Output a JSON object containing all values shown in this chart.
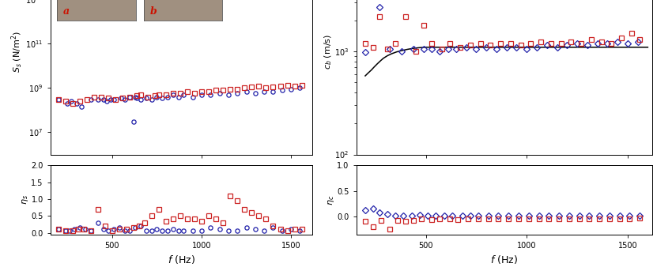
{
  "left_top": {
    "ylabel": "$S_s$ (N/m$^2$)",
    "type_a_f": [
      200,
      250,
      270,
      300,
      330,
      380,
      420,
      450,
      470,
      490,
      510,
      550,
      570,
      600,
      630,
      640,
      660,
      690,
      720,
      750,
      780,
      810,
      840,
      870,
      900,
      950,
      1000,
      1050,
      1100,
      1150,
      1200,
      1250,
      1300,
      1350,
      1400,
      1450,
      1500,
      1550
    ],
    "type_a_v": [
      300000000.0,
      200000000.0,
      250000000.0,
      200000000.0,
      150000000.0,
      300000000.0,
      300000000.0,
      300000000.0,
      250000000.0,
      300000000.0,
      300000000.0,
      350000000.0,
      300000000.0,
      400000000.0,
      400000000.0,
      350000000.0,
      300000000.0,
      350000000.0,
      300000000.0,
      400000000.0,
      350000000.0,
      400000000.0,
      500000000.0,
      400000000.0,
      500000000.0,
      400000000.0,
      500000000.0,
      500000000.0,
      600000000.0,
      500000000.0,
      600000000.0,
      700000000.0,
      600000000.0,
      700000000.0,
      700000000.0,
      800000000.0,
      900000000.0,
      1000000000.0
    ],
    "type_b_f": [
      200,
      240,
      280,
      320,
      360,
      400,
      440,
      480,
      520,
      560,
      600,
      640,
      660,
      700,
      740,
      760,
      800,
      840,
      880,
      920,
      960,
      1000,
      1040,
      1080,
      1120,
      1160,
      1200,
      1240,
      1280,
      1320,
      1360,
      1400,
      1440,
      1480,
      1520,
      1560
    ],
    "type_b_v": [
      300000000.0,
      250000000.0,
      200000000.0,
      250000000.0,
      300000000.0,
      400000000.0,
      400000000.0,
      350000000.0,
      300000000.0,
      350000000.0,
      400000000.0,
      450000000.0,
      500000000.0,
      400000000.0,
      450000000.0,
      500000000.0,
      500000000.0,
      600000000.0,
      600000000.0,
      700000000.0,
      600000000.0,
      700000000.0,
      700000000.0,
      800000000.0,
      800000000.0,
      900000000.0,
      900000000.0,
      1000000000.0,
      1100000000.0,
      1200000000.0,
      1000000000.0,
      1100000000.0,
      1200000000.0,
      1300000000.0,
      1200000000.0,
      1300000000.0
    ],
    "type_a_outlier_f": [
      620
    ],
    "type_a_outlier_v": [
      30000000.0
    ]
  },
  "left_bottom": {
    "ylabel": "$\\eta_s$",
    "ylim": [
      -0.05,
      2.0
    ],
    "yticks": [
      0.0,
      0.5,
      1.0,
      1.5,
      2.0
    ],
    "xlabel": "$f$ (Hz)",
    "type_a_f": [
      200,
      240,
      260,
      290,
      320,
      350,
      380,
      420,
      450,
      480,
      510,
      540,
      570,
      600,
      630,
      660,
      690,
      720,
      750,
      780,
      810,
      840,
      870,
      900,
      950,
      1000,
      1050,
      1100,
      1150,
      1200,
      1250,
      1300,
      1350,
      1400,
      1450,
      1500,
      1550
    ],
    "type_a_v": [
      0.1,
      0.05,
      0.05,
      0.1,
      0.15,
      0.1,
      0.05,
      0.3,
      0.1,
      0.05,
      0.1,
      0.15,
      0.05,
      0.05,
      0.15,
      0.2,
      0.05,
      0.05,
      0.1,
      0.05,
      0.05,
      0.1,
      0.05,
      0.05,
      0.05,
      0.05,
      0.15,
      0.1,
      0.05,
      0.05,
      0.15,
      0.1,
      0.05,
      0.15,
      0.05,
      0.1,
      0.05
    ],
    "type_b_f": [
      200,
      240,
      280,
      310,
      340,
      380,
      420,
      460,
      500,
      540,
      580,
      620,
      650,
      680,
      720,
      760,
      800,
      840,
      880,
      920,
      960,
      1000,
      1040,
      1080,
      1120,
      1160,
      1200,
      1240,
      1280,
      1320,
      1360,
      1400,
      1440,
      1480,
      1520,
      1560
    ],
    "type_b_v": [
      0.1,
      0.05,
      0.05,
      0.1,
      0.1,
      0.05,
      0.7,
      0.2,
      0.05,
      0.1,
      0.1,
      0.15,
      0.2,
      0.3,
      0.5,
      0.7,
      0.35,
      0.4,
      0.5,
      0.4,
      0.4,
      0.35,
      0.5,
      0.4,
      0.3,
      1.1,
      0.95,
      0.7,
      0.6,
      0.5,
      0.4,
      0.2,
      0.1,
      0.05,
      0.1,
      0.1
    ]
  },
  "right_top": {
    "ylabel": "$c_b$ (m/s)",
    "type_a_f": [
      200,
      270,
      320,
      380,
      440,
      490,
      530,
      570,
      610,
      650,
      700,
      750,
      800,
      850,
      900,
      950,
      1000,
      1050,
      1100,
      1150,
      1200,
      1250,
      1300,
      1350,
      1400,
      1450,
      1500,
      1550
    ],
    "type_a_v": [
      980,
      2700,
      1050,
      1000,
      1050,
      1050,
      1050,
      1000,
      1050,
      1050,
      1100,
      1050,
      1100,
      1050,
      1100,
      1100,
      1050,
      1100,
      1150,
      1100,
      1150,
      1200,
      1150,
      1200,
      1200,
      1250,
      1200,
      1250
    ],
    "type_b_f": [
      200,
      240,
      270,
      310,
      350,
      400,
      450,
      490,
      530,
      580,
      620,
      670,
      720,
      770,
      820,
      870,
      920,
      970,
      1020,
      1070,
      1120,
      1170,
      1220,
      1270,
      1320,
      1370,
      1420,
      1470,
      1520,
      1560
    ],
    "type_b_v": [
      1200,
      1100,
      2200,
      1050,
      1200,
      2200,
      1000,
      1800,
      1200,
      1050,
      1200,
      1100,
      1150,
      1200,
      1150,
      1200,
      1200,
      1150,
      1200,
      1250,
      1200,
      1200,
      1250,
      1200,
      1300,
      1250,
      1200,
      1350,
      1500,
      1300
    ],
    "curve_f": [
      200,
      215,
      230,
      245,
      260,
      275,
      290,
      310,
      330,
      355,
      380,
      410,
      440,
      470,
      500,
      540,
      580,
      640,
      720,
      900,
      1200,
      1600
    ],
    "curve_v": [
      580,
      620,
      660,
      710,
      760,
      810,
      860,
      910,
      950,
      990,
      1020,
      1050,
      1075,
      1090,
      1100,
      1100,
      1100,
      1100,
      1100,
      1100,
      1100,
      1100
    ]
  },
  "right_bottom": {
    "ylabel": "$\\eta_c$",
    "ylim": [
      -0.35,
      1.0
    ],
    "yticks": [
      0.0,
      0.5,
      1.0
    ],
    "xlabel": "$f$ (Hz)",
    "type_a_f": [
      200,
      240,
      270,
      310,
      350,
      390,
      430,
      470,
      510,
      550,
      590,
      630,
      680,
      720,
      760,
      810,
      860,
      910,
      960,
      1010,
      1060,
      1110,
      1160,
      1210,
      1260,
      1310,
      1360,
      1410,
      1460,
      1510,
      1560
    ],
    "type_a_v": [
      0.12,
      0.15,
      0.08,
      0.05,
      0.02,
      0.02,
      0.01,
      0.03,
      0.02,
      0.01,
      0.02,
      0.01,
      0.02,
      0.01,
      0.01,
      0.01,
      0.01,
      0.02,
      0.01,
      0.01,
      0.01,
      0.01,
      0.01,
      0.01,
      0.01,
      0.01,
      0.01,
      0.01,
      0.01,
      0.01,
      0.01
    ],
    "type_b_f": [
      200,
      240,
      280,
      320,
      360,
      400,
      440,
      480,
      530,
      570,
      620,
      660,
      710,
      760,
      810,
      860,
      910,
      960,
      1010,
      1060,
      1110,
      1160,
      1210,
      1260,
      1310,
      1360,
      1410,
      1460,
      1510,
      1560
    ],
    "type_b_v": [
      -0.1,
      -0.2,
      -0.07,
      -0.25,
      -0.08,
      -0.1,
      -0.07,
      -0.05,
      -0.06,
      -0.05,
      -0.05,
      -0.06,
      -0.05,
      -0.05,
      -0.05,
      -0.04,
      -0.04,
      -0.05,
      -0.04,
      -0.04,
      -0.04,
      -0.04,
      -0.04,
      -0.04,
      -0.04,
      -0.04,
      -0.04,
      -0.04,
      -0.04,
      -0.03
    ]
  },
  "color_a": "#2222aa",
  "color_b": "#cc2222",
  "xlim": [
    155,
    1620
  ],
  "xticks": [
    500,
    1000,
    1500
  ],
  "inset_a_color": "#9a8878",
  "inset_b_color": "#b09880"
}
